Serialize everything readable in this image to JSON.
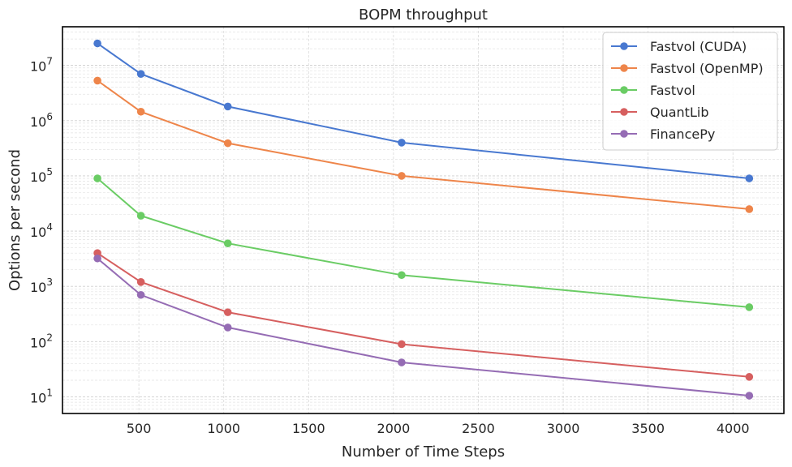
{
  "chart_data": {
    "type": "line",
    "title": "BOPM throughput",
    "xlabel": "Number of Time Steps",
    "ylabel": "Options per second",
    "yscale": "log",
    "xlim": [
      50,
      4300
    ],
    "ylim": [
      5,
      50000000
    ],
    "x": [
      256,
      512,
      1024,
      2048,
      4096
    ],
    "x_ticks": [
      500,
      1000,
      1500,
      2000,
      2500,
      3000,
      3500,
      4000
    ],
    "y_ticks": [
      {
        "value": 10,
        "base": "10",
        "exp": "1"
      },
      {
        "value": 100,
        "base": "10",
        "exp": "2"
      },
      {
        "value": 1000,
        "base": "10",
        "exp": "3"
      },
      {
        "value": 10000,
        "base": "10",
        "exp": "4"
      },
      {
        "value": 100000,
        "base": "10",
        "exp": "5"
      },
      {
        "value": 1000000,
        "base": "10",
        "exp": "6"
      },
      {
        "value": 10000000,
        "base": "10",
        "exp": "7"
      }
    ],
    "grid": true,
    "legend_position": "top-right",
    "series": [
      {
        "name": "Fastvol (CUDA)",
        "color": "#4878d0",
        "values": [
          25000000,
          7000000,
          1800000,
          400000,
          90000
        ]
      },
      {
        "name": "Fastvol (OpenMP)",
        "color": "#ee854a",
        "values": [
          5300000,
          1450000,
          390000,
          100000,
          25000
        ]
      },
      {
        "name": "Fastvol",
        "color": "#6acc64",
        "values": [
          90000,
          19000,
          6000,
          1600,
          420
        ]
      },
      {
        "name": "QuantLib",
        "color": "#d65f5f",
        "values": [
          4000,
          1200,
          340,
          90,
          23
        ]
      },
      {
        "name": "FinancePy",
        "color": "#956cb4",
        "values": [
          3200,
          700,
          180,
          42,
          10.5
        ]
      }
    ]
  }
}
